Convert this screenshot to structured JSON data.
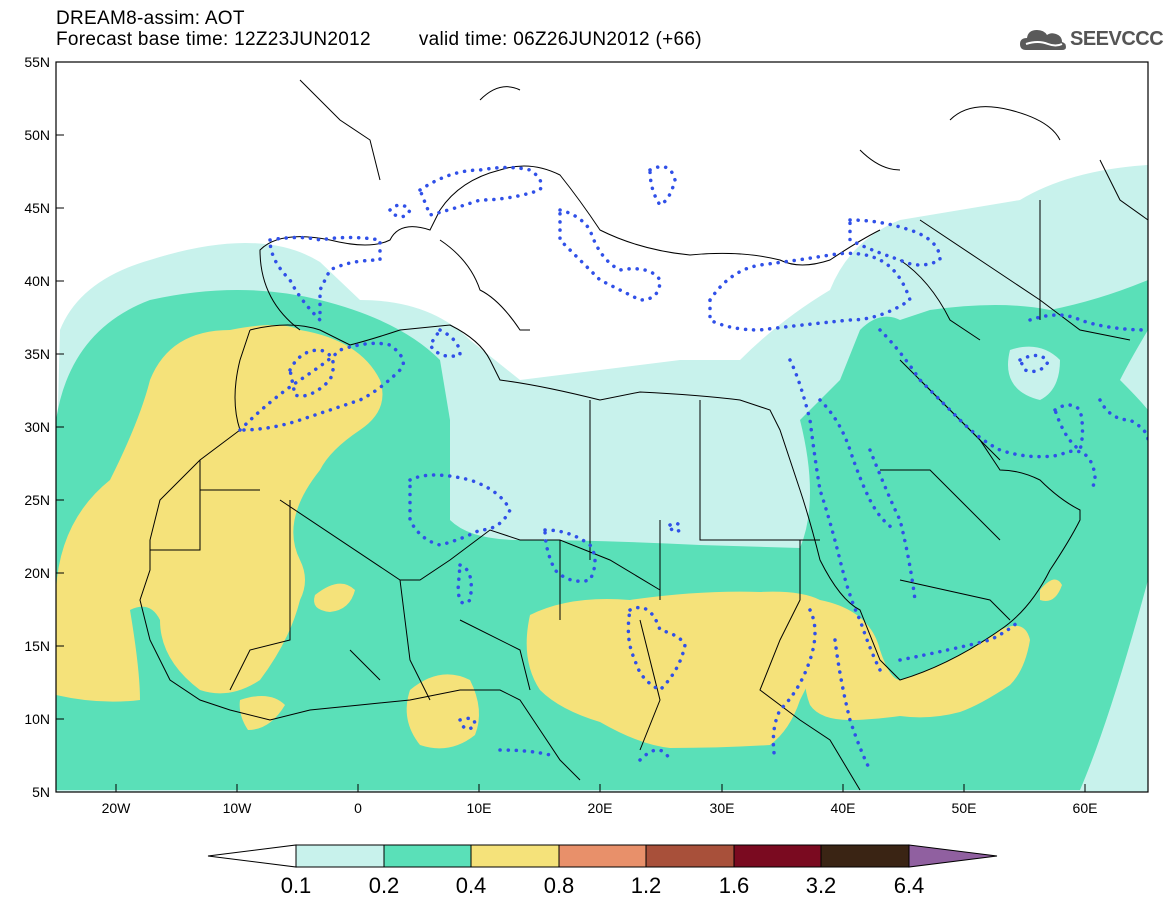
{
  "header": {
    "line1": "DREAM8-assim: AOT",
    "base": "Forecast base time: 12Z23JUN2012",
    "valid": "valid time: 06Z26JUN2012 (+66)"
  },
  "logo": {
    "text": "SEEVCCC",
    "icon": "cloud-icon"
  },
  "map": {
    "lat_labels": [
      "55N",
      "50N",
      "45N",
      "40N",
      "35N",
      "30N",
      "25N",
      "20N",
      "15N",
      "10N",
      "5N"
    ],
    "lon_labels": [
      "20W",
      "10W",
      "0",
      "10E",
      "20E",
      "30E",
      "40E",
      "50E",
      "60E"
    ],
    "extent": {
      "lon": [
        -25,
        65
      ],
      "lat": [
        5,
        55
      ]
    }
  },
  "colorbar": {
    "labels": [
      "0.1",
      "0.2",
      "0.4",
      "0.8",
      "1.2",
      "1.6",
      "3.2",
      "6.4"
    ],
    "colors": [
      "#ffffff",
      "#c8f2ec",
      "#5ae0b8",
      "#f5e27a",
      "#e8906a",
      "#a8503a",
      "#7a0a20",
      "#3a2414",
      "#9060a0"
    ]
  }
}
